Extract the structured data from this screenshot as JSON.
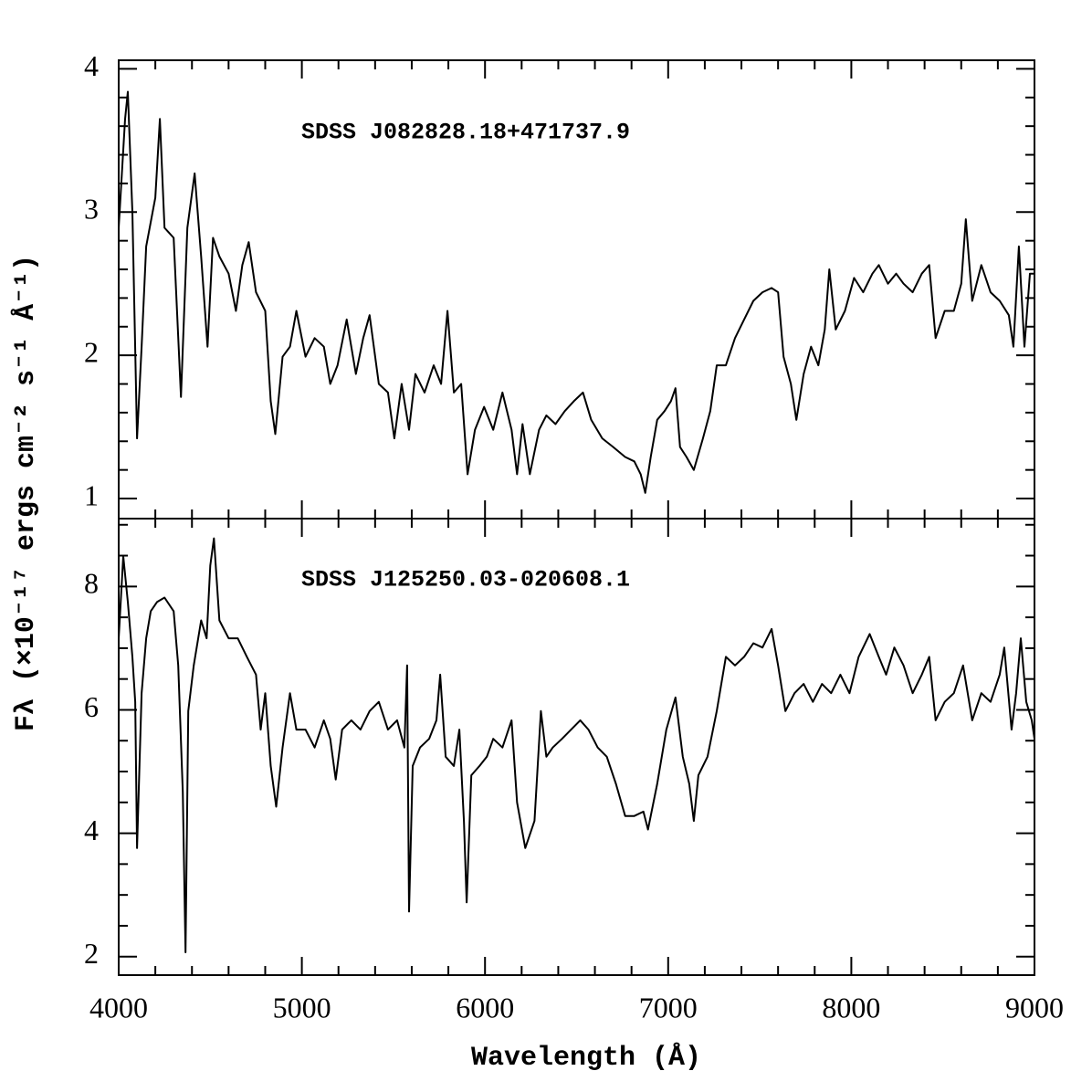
{
  "chart_data": [
    {
      "type": "line",
      "annotation": "SDSS J082828.18+471737.9",
      "ylabel": "Fλ (×10⁻¹⁷ ergs cm⁻² s⁻¹ Å⁻¹)",
      "color": "#000000",
      "xlim": [
        4000,
        9000
      ],
      "ylim": [
        0.86,
        4.06
      ],
      "xticks": [
        4000,
        5000,
        6000,
        7000,
        8000,
        9000
      ],
      "xminor": [
        4200,
        4400,
        4600,
        4800,
        5200,
        5400,
        5600,
        5800,
        6200,
        6400,
        6600,
        6800,
        7200,
        7400,
        7600,
        7800,
        8200,
        8400,
        8600,
        8800
      ],
      "yticks": [
        1,
        2,
        3,
        4
      ],
      "yminor": [
        1.2,
        1.4,
        1.6,
        1.8,
        2.2,
        2.4,
        2.6,
        2.8,
        3.2,
        3.4,
        3.6,
        3.8
      ],
      "x": [
        4000,
        4035,
        4050,
        4075,
        4100,
        4125,
        4150,
        4200,
        4225,
        4250,
        4300,
        4340,
        4375,
        4415,
        4450,
        4485,
        4515,
        4550,
        4600,
        4640,
        4675,
        4710,
        4750,
        4800,
        4830,
        4855,
        4895,
        4935,
        4970,
        5020,
        5070,
        5120,
        5155,
        5195,
        5245,
        5295,
        5335,
        5370,
        5420,
        5470,
        5505,
        5545,
        5585,
        5620,
        5670,
        5720,
        5760,
        5795,
        5830,
        5870,
        5905,
        5945,
        5995,
        6045,
        6095,
        6145,
        6175,
        6205,
        6245,
        6295,
        6335,
        6385,
        6435,
        6485,
        6535,
        6580,
        6640,
        6700,
        6765,
        6815,
        6850,
        6875,
        6905,
        6940,
        6980,
        7015,
        7040,
        7065,
        7100,
        7140,
        7190,
        7230,
        7265,
        7315,
        7365,
        7415,
        7465,
        7515,
        7565,
        7600,
        7630,
        7670,
        7700,
        7740,
        7780,
        7820,
        7855,
        7880,
        7915,
        7965,
        8015,
        8065,
        8115,
        8150,
        8200,
        8245,
        8285,
        8335,
        8385,
        8425,
        8460,
        8510,
        8560,
        8600,
        8625,
        8660,
        8710,
        8760,
        8810,
        8860,
        8885,
        8915,
        8945,
        8975,
        9000
      ],
      "values": [
        2.89,
        3.65,
        3.84,
        3.0,
        1.42,
        2.06,
        2.76,
        3.1,
        3.65,
        2.89,
        2.82,
        1.71,
        2.89,
        3.27,
        2.69,
        2.06,
        2.82,
        2.69,
        2.57,
        2.31,
        2.63,
        2.79,
        2.44,
        2.31,
        1.68,
        1.45,
        1.99,
        2.06,
        2.31,
        1.99,
        2.12,
        2.06,
        1.8,
        1.93,
        2.25,
        1.87,
        2.12,
        2.28,
        1.8,
        1.74,
        1.42,
        1.8,
        1.48,
        1.87,
        1.74,
        1.93,
        1.8,
        2.31,
        1.74,
        1.8,
        1.17,
        1.48,
        1.64,
        1.48,
        1.74,
        1.48,
        1.17,
        1.52,
        1.17,
        1.48,
        1.58,
        1.52,
        1.61,
        1.68,
        1.74,
        1.55,
        1.42,
        1.36,
        1.29,
        1.26,
        1.17,
        1.04,
        1.29,
        1.55,
        1.61,
        1.68,
        1.77,
        1.36,
        1.29,
        1.2,
        1.42,
        1.61,
        1.93,
        1.93,
        2.12,
        2.25,
        2.38,
        2.44,
        2.47,
        2.44,
        1.99,
        1.8,
        1.55,
        1.87,
        2.06,
        1.93,
        2.18,
        2.6,
        2.18,
        2.31,
        2.54,
        2.44,
        2.57,
        2.63,
        2.5,
        2.57,
        2.5,
        2.44,
        2.57,
        2.63,
        2.12,
        2.31,
        2.31,
        2.5,
        2.95,
        2.38,
        2.63,
        2.44,
        2.38,
        2.28,
        2.06,
        2.76,
        2.06,
        2.57,
        2.57
      ]
    },
    {
      "type": "line",
      "annotation": "SDSS J125250.03-020608.1",
      "xlabel": "Wavelength (Å)",
      "color": "#000000",
      "xlim": [
        4000,
        9000
      ],
      "ylim": [
        1.7,
        9.1
      ],
      "xticks": [
        4000,
        5000,
        6000,
        7000,
        8000,
        9000
      ],
      "xminor": [
        4200,
        4400,
        4600,
        4800,
        5200,
        5400,
        5600,
        5800,
        6200,
        6400,
        6600,
        6800,
        7200,
        7400,
        7600,
        7800,
        8200,
        8400,
        8600,
        8800
      ],
      "yticks": [
        2,
        4,
        6,
        8
      ],
      "yminor": [
        2.5,
        3,
        3.5,
        4.5,
        5,
        5.5,
        6.5,
        7,
        7.5,
        8.5,
        9
      ],
      "x": [
        4000,
        4025,
        4050,
        4075,
        4090,
        4100,
        4125,
        4150,
        4175,
        4210,
        4250,
        4300,
        4325,
        4350,
        4365,
        4380,
        4410,
        4450,
        4480,
        4500,
        4520,
        4550,
        4600,
        4650,
        4700,
        4750,
        4775,
        4800,
        4830,
        4860,
        4895,
        4935,
        4970,
        5020,
        5070,
        5120,
        5155,
        5185,
        5220,
        5270,
        5320,
        5370,
        5420,
        5470,
        5520,
        5560,
        5575,
        5585,
        5605,
        5645,
        5695,
        5735,
        5755,
        5785,
        5830,
        5860,
        5885,
        5900,
        5925,
        5970,
        6010,
        6045,
        6095,
        6145,
        6175,
        6220,
        6270,
        6305,
        6335,
        6370,
        6420,
        6470,
        6520,
        6565,
        6615,
        6665,
        6715,
        6765,
        6815,
        6865,
        6890,
        6940,
        6990,
        7040,
        7080,
        7115,
        7140,
        7165,
        7215,
        7265,
        7315,
        7365,
        7415,
        7465,
        7515,
        7565,
        7600,
        7640,
        7690,
        7740,
        7790,
        7840,
        7890,
        7940,
        7990,
        8040,
        8100,
        8150,
        8190,
        8235,
        8285,
        8335,
        8385,
        8425,
        8460,
        8510,
        8560,
        8610,
        8660,
        8710,
        8760,
        8810,
        8835,
        8875,
        8900,
        8925,
        8955,
        8985,
        9000
      ],
      "values": [
        7.16,
        8.49,
        7.75,
        6.86,
        6.13,
        3.76,
        6.27,
        7.16,
        7.6,
        7.75,
        7.82,
        7.6,
        6.72,
        4.67,
        2.07,
        5.98,
        6.72,
        7.45,
        7.16,
        8.34,
        8.78,
        7.45,
        7.16,
        7.16,
        6.86,
        6.57,
        5.68,
        6.27,
        5.09,
        4.43,
        5.39,
        6.27,
        5.68,
        5.68,
        5.39,
        5.83,
        5.53,
        4.87,
        5.68,
        5.83,
        5.68,
        5.98,
        6.13,
        5.68,
        5.83,
        5.39,
        6.72,
        2.73,
        5.09,
        5.39,
        5.53,
        5.83,
        6.57,
        5.24,
        5.09,
        5.68,
        4.2,
        2.88,
        4.94,
        5.09,
        5.24,
        5.53,
        5.39,
        5.83,
        4.5,
        3.76,
        4.2,
        5.98,
        5.24,
        5.39,
        5.53,
        5.68,
        5.83,
        5.68,
        5.39,
        5.24,
        4.8,
        4.28,
        4.28,
        4.35,
        4.06,
        4.8,
        5.68,
        6.2,
        5.24,
        4.8,
        4.2,
        4.94,
        5.24,
        5.98,
        6.86,
        6.72,
        6.86,
        7.08,
        7.01,
        7.31,
        6.72,
        5.98,
        6.27,
        6.42,
        6.13,
        6.42,
        6.27,
        6.57,
        6.27,
        6.86,
        7.23,
        6.86,
        6.57,
        7.01,
        6.72,
        6.27,
        6.57,
        6.86,
        5.83,
        6.13,
        6.27,
        6.72,
        5.83,
        6.27,
        6.13,
        6.57,
        7.01,
        5.68,
        6.27,
        7.16,
        6.13,
        5.83,
        5.53
      ]
    }
  ]
}
